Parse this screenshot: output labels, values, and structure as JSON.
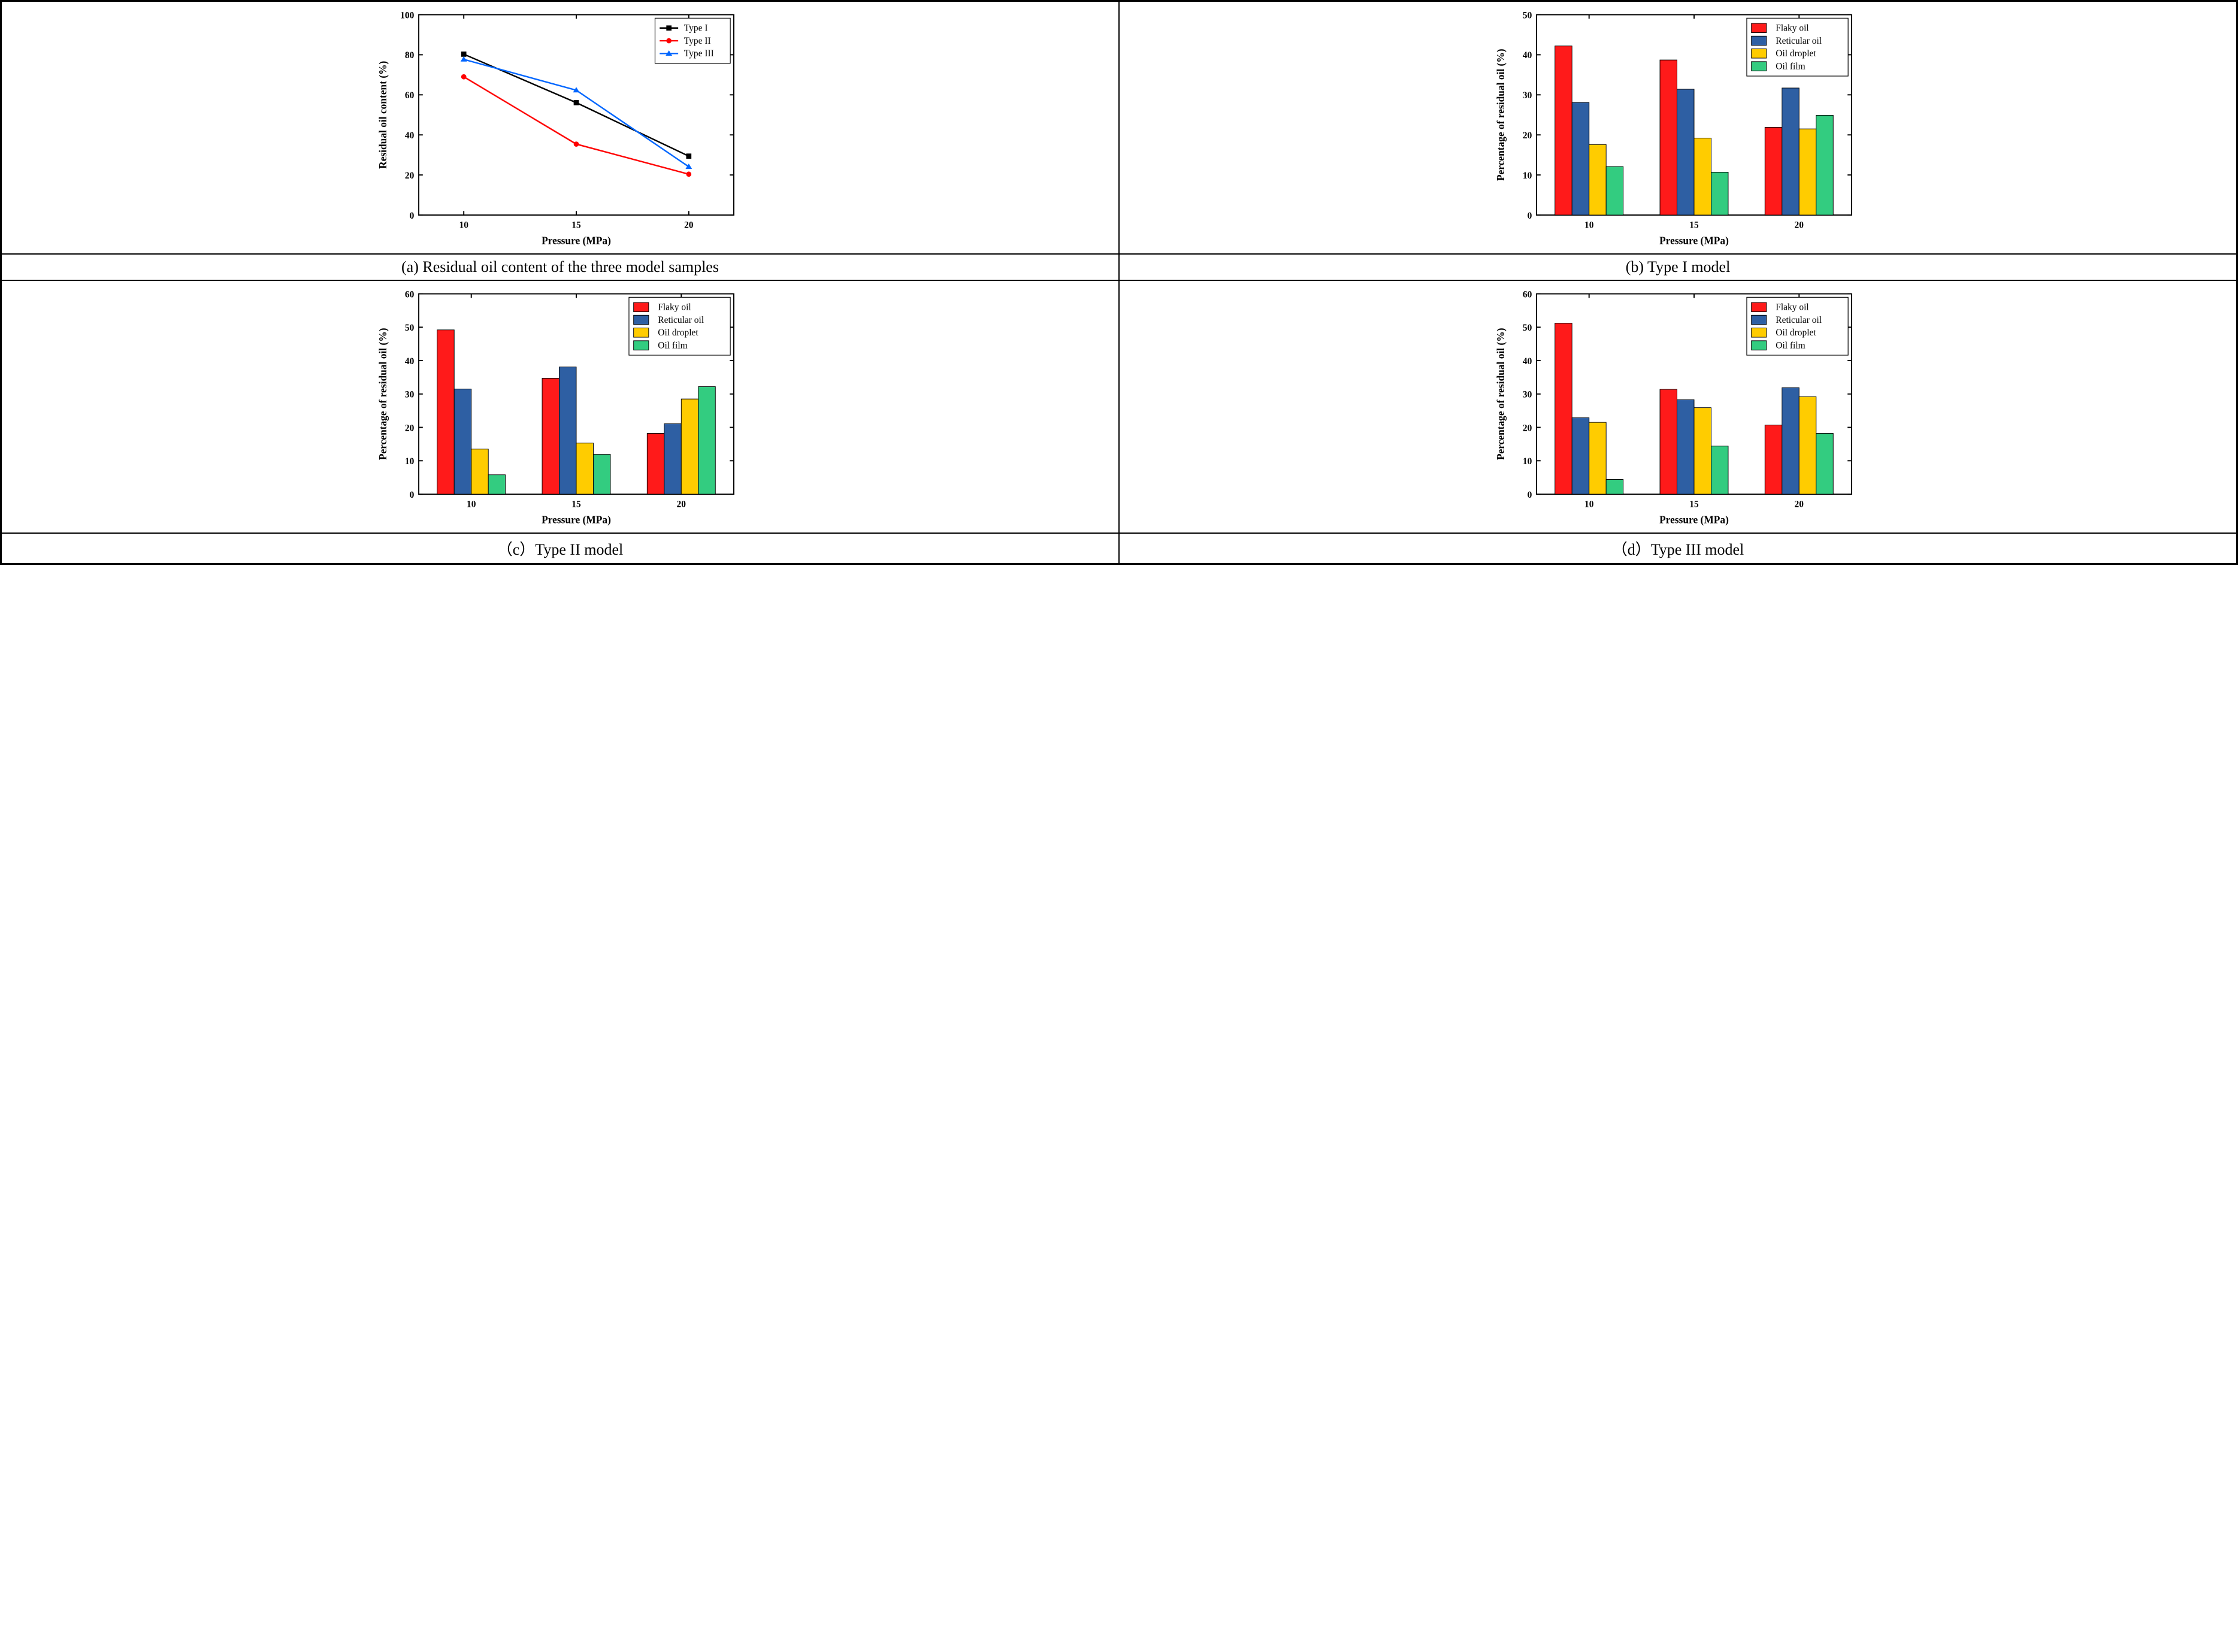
{
  "global": {
    "bg": "#ffffff",
    "axis_color": "#000000",
    "tick_color": "#000000",
    "axis_line_width": 2,
    "tick_line_width": 2,
    "font_axis_label": 18,
    "font_tick": 16,
    "font_legend": 16,
    "font_caption": 26
  },
  "captions": {
    "a": "(a) Residual oil content of the three model samples",
    "b": "(b) Type I model",
    "c": "（c）Type II model",
    "d": "（d）Type III model"
  },
  "panel_a": {
    "type": "line",
    "xlabel": "Pressure (MPa)",
    "ylabel": "Residual oil content (%)",
    "xticks": [
      10,
      15,
      20
    ],
    "yticks": [
      0,
      20,
      40,
      60,
      80,
      100
    ],
    "ylim": [
      0,
      100
    ],
    "xlim": [
      8,
      22
    ],
    "series": [
      {
        "name": "Type I",
        "color": "#000000",
        "marker": "square",
        "x": [
          10,
          15,
          20
        ],
        "y": [
          80.3,
          56.1,
          29.4
        ]
      },
      {
        "name": "Type II",
        "color": "#ff0000",
        "marker": "circle",
        "x": [
          10,
          15,
          20
        ],
        "y": [
          69.0,
          35.4,
          20.4
        ]
      },
      {
        "name": "Type III",
        "color": "#0066ff",
        "marker": "triangle",
        "x": [
          10,
          15,
          20
        ],
        "y": [
          77.7,
          62.3,
          24.1
        ]
      }
    ],
    "line_width": 2.5,
    "marker_size": 8,
    "legend_pos": "top-right"
  },
  "bar_common": {
    "xlabel": "Pressure (MPa)",
    "ylabel": "Percentage of residual oil (%)",
    "xticks": [
      10,
      15,
      20
    ],
    "series_names": [
      "Flaky oil",
      "Reticular oil",
      "Oil droplet",
      "Oil film"
    ],
    "series_colors": [
      "#ff1a1a",
      "#2e5fa3",
      "#ffcc00",
      "#33cc80"
    ],
    "bar_border": "#000000",
    "bar_border_width": 1,
    "group_gap": 0.35,
    "bar_gap": 0.0,
    "legend_pos": "top-right"
  },
  "panel_b": {
    "type": "bar",
    "ylim": [
      0,
      50
    ],
    "yticks": [
      0,
      10,
      20,
      30,
      40,
      50
    ],
    "data": {
      "10": [
        42.2,
        28.1,
        17.6,
        12.1
      ],
      "15": [
        38.7,
        31.4,
        19.2,
        10.7
      ],
      "20": [
        21.9,
        31.7,
        21.5,
        24.9
      ]
    }
  },
  "panel_c": {
    "type": "bar",
    "ylim": [
      0,
      60
    ],
    "yticks": [
      0,
      10,
      20,
      30,
      40,
      50,
      60
    ],
    "data": {
      "10": [
        49.2,
        31.5,
        13.5,
        5.8
      ],
      "15": [
        34.7,
        38.1,
        15.3,
        11.9
      ],
      "20": [
        18.2,
        21.1,
        28.5,
        32.2
      ]
    }
  },
  "panel_d": {
    "type": "bar",
    "ylim": [
      0,
      60
    ],
    "yticks": [
      0,
      10,
      20,
      30,
      40,
      50,
      60
    ],
    "data": {
      "10": [
        51.2,
        22.9,
        21.5,
        4.4
      ],
      "15": [
        31.4,
        28.3,
        25.9,
        14.4
      ],
      "20": [
        20.7,
        31.9,
        29.2,
        18.2
      ]
    }
  }
}
